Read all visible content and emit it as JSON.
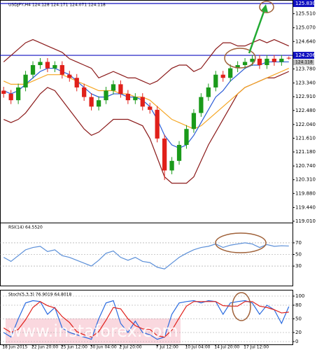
{
  "chart_data": [
    {
      "type": "candlestick",
      "title": "USDJPY,H4 124.128 124.171 124.071 124.118",
      "categories": [
        "18 Jun 2015",
        null,
        null,
        null,
        "22 Jun 20:00",
        null,
        null,
        null,
        "25 Jun 12:00",
        null,
        null,
        null,
        "30 Jun 04:00",
        null,
        null,
        null,
        "2 Jul 20:00",
        null,
        null,
        null,
        null,
        "7 Jul 12:00",
        null,
        null,
        null,
        "10 Jul 04:00",
        null,
        null,
        null,
        "14 Jul 20:00",
        null,
        null,
        null,
        "17 Jul 12:00",
        null,
        null,
        null,
        null,
        null,
        null
      ],
      "open": [
        123.1,
        123.0,
        122.8,
        123.2,
        123.6,
        123.9,
        124.0,
        123.8,
        123.9,
        123.6,
        123.5,
        123.2,
        122.9,
        122.6,
        122.8,
        123.1,
        123.3,
        123.0,
        122.8,
        122.9,
        122.6,
        122.5,
        121.6,
        120.6,
        120.9,
        121.4,
        121.9,
        122.4,
        122.9,
        123.2,
        123.6,
        123.5,
        123.8,
        123.9,
        124.0,
        124.1,
        123.9,
        124.1,
        124.0,
        124.128
      ],
      "high": [
        123.22,
        123.12,
        123.32,
        123.72,
        124.02,
        124.12,
        124.12,
        124.02,
        124.02,
        123.72,
        123.62,
        123.32,
        123.02,
        122.92,
        123.22,
        123.42,
        123.42,
        123.12,
        123.02,
        123.02,
        122.72,
        122.62,
        121.72,
        121.02,
        121.52,
        122.02,
        122.52,
        123.02,
        123.32,
        123.72,
        123.72,
        123.92,
        124.02,
        124.12,
        124.22,
        124.22,
        124.22,
        124.22,
        124.22,
        124.171
      ],
      "low": [
        122.88,
        122.68,
        122.68,
        123.08,
        123.48,
        123.78,
        123.68,
        123.68,
        123.48,
        123.38,
        123.08,
        122.78,
        122.48,
        122.48,
        122.68,
        122.98,
        122.88,
        122.68,
        122.68,
        122.48,
        122.38,
        121.48,
        120.3,
        120.48,
        120.78,
        121.28,
        121.78,
        122.28,
        122.78,
        123.08,
        123.38,
        123.38,
        123.68,
        123.78,
        123.88,
        123.78,
        123.78,
        123.88,
        123.88,
        124.071
      ],
      "close": [
        123.0,
        122.8,
        123.2,
        123.6,
        123.9,
        124.0,
        123.8,
        123.9,
        123.6,
        123.5,
        123.2,
        122.9,
        122.6,
        122.8,
        123.1,
        123.3,
        123.0,
        122.8,
        122.9,
        122.6,
        122.5,
        121.6,
        120.6,
        120.9,
        121.4,
        121.9,
        122.4,
        122.9,
        123.2,
        123.6,
        123.5,
        123.8,
        123.9,
        124.0,
        124.1,
        123.9,
        124.1,
        124.0,
        124.1,
        124.118
      ],
      "up_color": "#1a9a1a",
      "down_color": "#e0201a",
      "series": [
        {
          "color": "#8b1a1a",
          "values": [
            124.0,
            124.2,
            124.4,
            124.6,
            124.7,
            124.6,
            124.5,
            124.4,
            124.3,
            124.1,
            124.0,
            123.9,
            123.8,
            123.5,
            123.6,
            123.7,
            123.6,
            123.5,
            123.5,
            123.4,
            123.3,
            123.4,
            123.6,
            123.8,
            123.9,
            123.9,
            123.7,
            123.8,
            124.1,
            124.4,
            124.6,
            124.6,
            124.5,
            124.5,
            124.6,
            124.7,
            124.6,
            124.7,
            124.6,
            124.5
          ]
        },
        {
          "color": "#8b1a1a",
          "values": [
            122.2,
            122.1,
            122.2,
            122.4,
            122.7,
            123.0,
            123.2,
            123.1,
            122.8,
            122.5,
            122.2,
            121.9,
            121.7,
            121.8,
            122.0,
            122.2,
            122.2,
            122.2,
            122.1,
            122.0,
            121.6,
            121.0,
            120.4,
            120.2,
            120.2,
            120.2,
            120.4,
            120.9,
            121.4,
            121.8,
            122.2,
            122.6,
            123.0,
            123.2,
            123.3,
            123.4,
            123.5,
            123.5,
            123.6,
            123.7
          ]
        },
        {
          "color": "#f5a623",
          "values": [
            123.4,
            123.3,
            123.3,
            123.3,
            123.4,
            123.5,
            123.6,
            123.6,
            123.6,
            123.5,
            123.4,
            123.3,
            123.2,
            123.1,
            123.1,
            123.1,
            123.0,
            123.0,
            122.9,
            122.9,
            122.8,
            122.6,
            122.4,
            122.2,
            122.1,
            122.0,
            121.9,
            122.0,
            122.2,
            122.4,
            122.6,
            122.8,
            123.0,
            123.2,
            123.3,
            123.4,
            123.5,
            123.6,
            123.7,
            123.8
          ]
        },
        {
          "color": "#2a5bd7",
          "values": [
            123.1,
            123.0,
            123.1,
            123.3,
            123.5,
            123.7,
            123.8,
            123.8,
            123.7,
            123.6,
            123.4,
            123.2,
            123.0,
            122.9,
            122.9,
            123.0,
            123.0,
            122.9,
            122.9,
            122.8,
            122.6,
            122.2,
            121.7,
            121.4,
            121.3,
            121.4,
            121.7,
            122.1,
            122.5,
            122.9,
            123.1,
            123.4,
            123.6,
            123.8,
            123.9,
            123.9,
            124.0,
            124.0,
            124.0,
            124.0
          ]
        }
      ],
      "ylim": [
        119.01,
        125.83
      ],
      "yticks": [
        {
          "value": 125.83,
          "label": "125.830"
        },
        {
          "value": 125.51,
          "label": "125.510"
        },
        {
          "value": 125.07,
          "label": "125.070"
        },
        {
          "value": 124.64,
          "label": "124.640"
        },
        {
          "value": 124.206,
          "label": "124.206"
        },
        {
          "value": 123.78,
          "label": "123.780"
        },
        {
          "value": 123.34,
          "label": "123.340"
        },
        {
          "value": 122.91,
          "label": "122.910"
        },
        {
          "value": 122.48,
          "label": "122.480"
        },
        {
          "value": 122.04,
          "label": "122.040"
        },
        {
          "value": 121.61,
          "label": "121.610"
        },
        {
          "value": 121.18,
          "label": "121.180"
        },
        {
          "value": 120.74,
          "label": "120.740"
        },
        {
          "value": 120.31,
          "label": "120.310"
        },
        {
          "value": 119.88,
          "label": "119.880"
        },
        {
          "value": 119.44,
          "label": "119.440"
        },
        {
          "value": 119.01,
          "label": "119.010"
        }
      ],
      "hlines": [
        125.83,
        124.206
      ],
      "hline_color": "#1010c0",
      "last": {
        "value": 124.118,
        "label": "124.118"
      },
      "watermark": "www.instaforex.com"
    },
    {
      "type": "line",
      "title": "RSI(14) 64.5520",
      "series": [
        {
          "color": "#5b8fd8",
          "values": [
            45,
            38,
            48,
            58,
            62,
            64,
            55,
            58,
            48,
            45,
            40,
            35,
            30,
            40,
            52,
            56,
            45,
            40,
            45,
            38,
            36,
            28,
            25,
            35,
            45,
            52,
            58,
            62,
            64,
            68,
            62,
            66,
            68,
            70,
            68,
            62,
            67,
            64,
            65,
            64.552
          ]
        }
      ],
      "ylim": [
        0,
        100
      ],
      "yticks": [
        70,
        50,
        30
      ]
    },
    {
      "type": "line",
      "title": "Stoch(5,3,3) 76.9019 64.8018",
      "series": [
        {
          "color": "#2a6be0",
          "values": [
            20,
            10,
            50,
            85,
            90,
            88,
            60,
            75,
            30,
            20,
            15,
            10,
            5,
            50,
            85,
            90,
            40,
            20,
            45,
            20,
            15,
            5,
            10,
            60,
            85,
            88,
            90,
            85,
            90,
            88,
            60,
            85,
            88,
            90,
            85,
            60,
            80,
            70,
            40,
            76.9019
          ]
        },
        {
          "color": "#e0201a",
          "values": [
            30,
            20,
            27,
            48,
            75,
            88,
            79,
            74,
            55,
            42,
            22,
            15,
            10,
            22,
            47,
            75,
            72,
            50,
            35,
            28,
            27,
            13,
            10,
            25,
            52,
            78,
            88,
            88,
            88,
            88,
            79,
            78,
            78,
            88,
            88,
            78,
            75,
            70,
            63,
            64.8018
          ]
        }
      ],
      "ylim": [
        0,
        100
      ],
      "yticks": [
        100,
        80,
        50,
        20,
        0
      ]
    }
  ]
}
